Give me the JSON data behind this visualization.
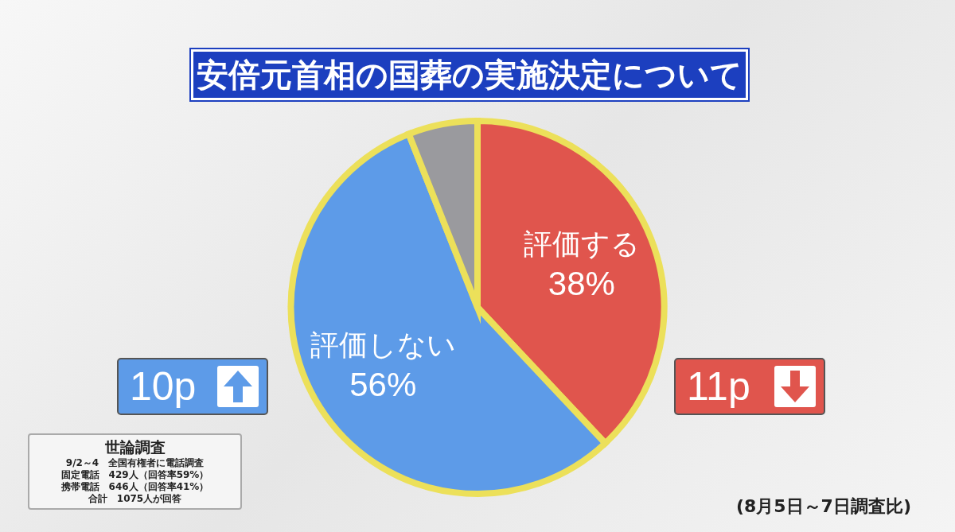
{
  "chart_data": {
    "type": "pie",
    "title": "安倍元首相の国葬の実施決定について",
    "categories": [
      "評価する",
      "評価しない",
      null
    ],
    "values": [
      38,
      56,
      6
    ],
    "colors": [
      "#e0554d",
      "#5d9be8",
      "#9a9a9e"
    ],
    "value_labels": [
      "38%",
      "56%",
      null
    ],
    "legend": false,
    "annotations": [
      "10p",
      "11p",
      "(8月5日～7日調査比)",
      "世論調査",
      "9/2～4　全国有権者に電話調査",
      "固定電話　429人（回答率59%）",
      "携帯電話　646人（回答率41%）",
      "合計　1075人が回答"
    ]
  }
}
